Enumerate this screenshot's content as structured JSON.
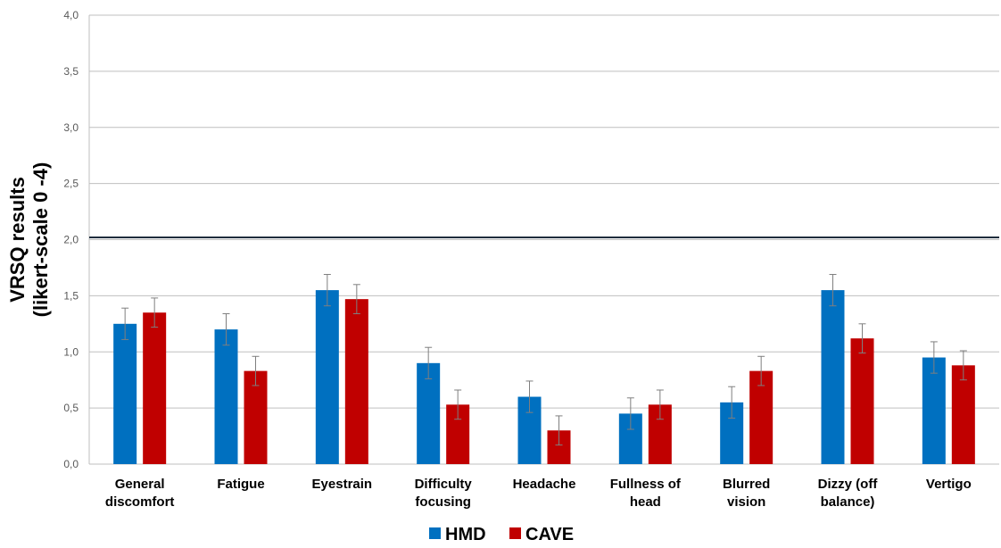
{
  "chart_data": {
    "type": "bar",
    "ylabel": [
      "VRSQ results",
      "(likert-scale 0 -4)"
    ],
    "ylim": [
      0,
      4
    ],
    "yticks": [
      "0,0",
      "0,5",
      "1,0",
      "1,5",
      "2,0",
      "2,5",
      "3,0",
      "3,5",
      "4,0"
    ],
    "grid": true,
    "reference_line": 2.02,
    "legend_position": "bottom",
    "categories": [
      [
        "General",
        "discomfort"
      ],
      [
        "Fatigue"
      ],
      [
        "Eyestrain"
      ],
      [
        "Difficulty",
        "focusing"
      ],
      [
        "Headache"
      ],
      [
        "Fullness of",
        "head"
      ],
      [
        "Blurred",
        "vision"
      ],
      [
        "Dizzy (off",
        "balance)"
      ],
      [
        "Vertigo"
      ]
    ],
    "series": [
      {
        "name": "HMD",
        "color": "#0070C0",
        "values": [
          1.25,
          1.2,
          1.55,
          0.9,
          0.6,
          0.45,
          0.55,
          1.55,
          0.95
        ],
        "errors": [
          0.14,
          0.14,
          0.14,
          0.14,
          0.14,
          0.14,
          0.14,
          0.14,
          0.14
        ]
      },
      {
        "name": "CAVE",
        "color": "#C00000",
        "values": [
          1.35,
          0.83,
          1.47,
          0.53,
          0.3,
          0.53,
          0.83,
          1.12,
          0.88
        ],
        "errors": [
          0.13,
          0.13,
          0.13,
          0.13,
          0.13,
          0.13,
          0.13,
          0.13,
          0.13
        ]
      }
    ]
  }
}
